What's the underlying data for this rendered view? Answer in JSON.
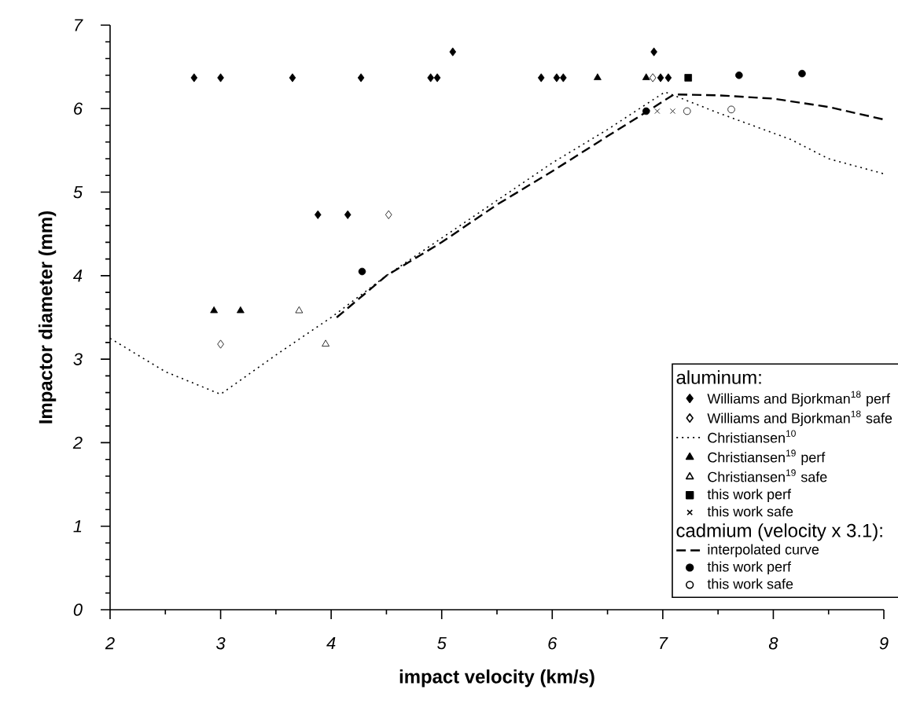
{
  "chart_data": {
    "type": "scatter",
    "xlabel": "impact velocity   (km/s)",
    "ylabel": "Impactor diameter   (mm)",
    "xlim": [
      2,
      9
    ],
    "ylim": [
      0,
      7
    ],
    "xticks": [
      2,
      3,
      4,
      5,
      6,
      7,
      8,
      9
    ],
    "yticks": [
      0,
      1,
      2,
      3,
      4,
      5,
      6,
      7
    ],
    "legend": "bottom right",
    "legend_title": "aluminum:",
    "annotations": [
      "cadmium (velocity x 3.1):"
    ],
    "series": [
      {
        "name": "Williams and Bjorkman$^{18}$  perf",
        "marker": "diamond",
        "color": "#000000",
        "x": [
          2.76,
          3.0,
          3.65,
          4.27,
          4.9,
          4.96,
          5.9,
          6.04,
          6.1,
          6.98,
          7.05,
          5.1,
          6.92,
          3.88,
          4.15
        ],
        "values": [
          6.37,
          6.37,
          6.37,
          6.37,
          6.37,
          6.37,
          6.37,
          6.37,
          6.37,
          6.37,
          6.37,
          6.68,
          6.68,
          4.73,
          4.73
        ]
      },
      {
        "name": "Williams and Bjorkman$^{18}$  safe",
        "marker": "diamond",
        "color": "#ffffff",
        "x": [
          3.0,
          4.52,
          6.91
        ],
        "values": [
          3.18,
          4.73,
          6.37
        ]
      },
      {
        "name": "Christiansen$^{10}$",
        "type": "line",
        "marker": "none",
        "line_style": "dotted",
        "color": "#000000",
        "x": [
          2.0,
          2.5,
          3.0,
          3.5,
          4.0,
          4.5,
          5.0,
          5.5,
          6.0,
          6.5,
          7.02,
          7.5,
          8.16,
          8.5,
          9.0
        ],
        "values": [
          3.25,
          2.85,
          2.58,
          3.05,
          3.5,
          4.0,
          4.45,
          4.9,
          5.35,
          5.75,
          6.2,
          5.95,
          5.63,
          5.4,
          5.22
        ]
      },
      {
        "name": "Christiansen$^{19}$  perf",
        "marker": "triangle",
        "color": "#000000",
        "x": [
          2.94,
          3.18,
          6.41,
          6.85
        ],
        "values": [
          3.58,
          3.58,
          6.37,
          6.37
        ]
      },
      {
        "name": "Christiansen$^{19}$  safe",
        "marker": "triangle",
        "color": "#ffffff",
        "x": [
          3.71,
          3.95
        ],
        "values": [
          3.58,
          3.18
        ]
      },
      {
        "name": "this work   perf",
        "marker": "square",
        "color": "#000000",
        "x": [
          7.23
        ],
        "values": [
          6.37
        ]
      },
      {
        "name": "this work   safe",
        "marker": "cross",
        "color": "#000000",
        "x": [
          6.95,
          7.09
        ],
        "values": [
          5.97,
          5.97
        ]
      },
      {
        "name": "interpolated curve",
        "type": "line",
        "marker": "none",
        "line_style": "dashed",
        "color": "#000000",
        "x": [
          4.05,
          4.5,
          5.0,
          5.5,
          6.0,
          6.5,
          6.9,
          7.1,
          7.5,
          8.0,
          8.5,
          9.0
        ],
        "values": [
          3.5,
          4.0,
          4.4,
          4.85,
          5.25,
          5.67,
          6.0,
          6.17,
          6.16,
          6.12,
          6.02,
          5.87
        ]
      },
      {
        "name": "this work   perf",
        "marker": "circle",
        "color": "#000000",
        "x": [
          4.28,
          6.85,
          7.69,
          8.26
        ],
        "values": [
          4.05,
          5.97,
          6.4,
          6.42
        ]
      },
      {
        "name": "this work   safe",
        "marker": "circle",
        "color": "#ffffff",
        "x": [
          7.22,
          7.62
        ],
        "values": [
          5.97,
          5.99
        ]
      }
    ]
  }
}
